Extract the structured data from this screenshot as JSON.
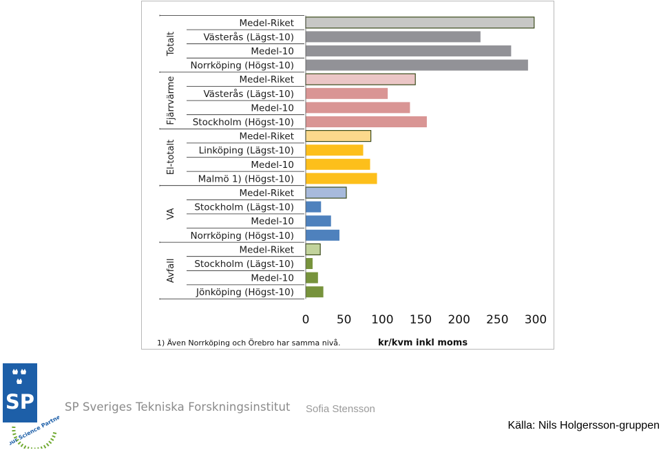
{
  "chart_data": {
    "type": "bar",
    "orientation": "horizontal",
    "xlabel": "kr/kvm inkl  moms",
    "xlim": [
      0,
      300
    ],
    "xticks": [
      "0",
      "50",
      "100",
      "150",
      "200",
      "250",
      "300"
    ],
    "footnote": "1) Även Norrköping och Örebro har samma nivå.",
    "grid": false,
    "groups": [
      {
        "name": "Totalt",
        "color": "#929297",
        "highlight_color": "#c7c7c5",
        "bars": [
          {
            "label": "Medel-Riket",
            "value": 298,
            "highlight": true
          },
          {
            "label": "Västerås (Lägst-10)",
            "value": 228,
            "highlight": false
          },
          {
            "label": "Medel-10",
            "value": 268,
            "highlight": false
          },
          {
            "label": "Norrköping (Högst-10)",
            "value": 290,
            "highlight": false
          }
        ]
      },
      {
        "name": "Fjärrvärme",
        "color": "#d99594",
        "highlight_color": "#ebc6c6",
        "bars": [
          {
            "label": "Medel-Riket",
            "value": 143,
            "highlight": true
          },
          {
            "label": "Västerås (Lägst-10)",
            "value": 107,
            "highlight": false
          },
          {
            "label": "Medel-10",
            "value": 136,
            "highlight": false
          },
          {
            "label": "Stockholm (Högst-10)",
            "value": 158,
            "highlight": false
          }
        ]
      },
      {
        "name": "El-totalt",
        "color": "#fdbf1b",
        "highlight_color": "#fcd98c",
        "bars": [
          {
            "label": "Medel-Riket",
            "value": 85,
            "highlight": true
          },
          {
            "label": "Linköping (Lägst-10)",
            "value": 75,
            "highlight": false
          },
          {
            "label": "Medel-10",
            "value": 84,
            "highlight": false
          },
          {
            "label": "Malmö 1) (Högst-10)",
            "value": 93,
            "highlight": false
          }
        ]
      },
      {
        "name": "VA",
        "color": "#4e81bd",
        "highlight_color": "#a7badc",
        "bars": [
          {
            "label": "Medel-Riket",
            "value": 53,
            "highlight": true
          },
          {
            "label": "Stockholm (Lägst-10)",
            "value": 20,
            "highlight": false
          },
          {
            "label": "Medel-10",
            "value": 33,
            "highlight": false
          },
          {
            "label": "Norrköping (Högst-10)",
            "value": 44,
            "highlight": false
          }
        ]
      },
      {
        "name": "Avfall",
        "color": "#77933c",
        "highlight_color": "#c2d39c",
        "bars": [
          {
            "label": "Medel-Riket",
            "value": 19,
            "highlight": true
          },
          {
            "label": "Stockholm (Lägst-10)",
            "value": 9,
            "highlight": false
          },
          {
            "label": "Medel-10",
            "value": 16,
            "highlight": false
          },
          {
            "label": "Jönköping (Högst-10)",
            "value": 23,
            "highlight": false
          }
        ]
      }
    ]
  },
  "footer": {
    "logo_text": "SP",
    "badge_text": "your Science Partner",
    "institute": "SP Sveriges Tekniska Forskningsinstitut",
    "author": "Sofia Stensson",
    "source": "Källa: Nils Holgersson-gruppen"
  },
  "colors": {
    "logo_blue": "#1d5fa8",
    "badge_green": "#6fa92f",
    "highlight_border": "#3a4a1a"
  }
}
